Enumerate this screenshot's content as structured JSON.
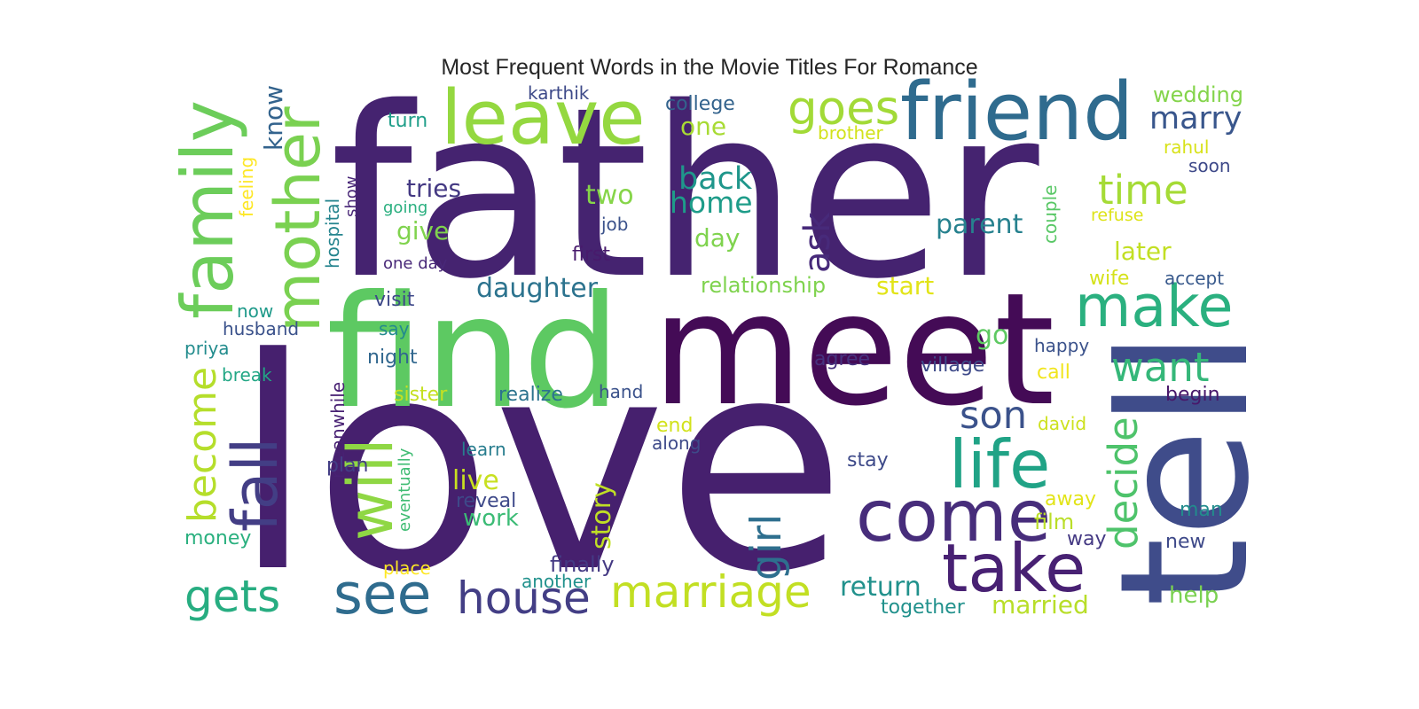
{
  "title": "Most Frequent Words in the Movie Titles For Romance",
  "palette": "viridis",
  "words": [
    {
      "text": "love",
      "color": "#46206e"
    },
    {
      "text": "father",
      "color": "#452370"
    },
    {
      "text": "meet",
      "color": "#440b56"
    },
    {
      "text": "tell",
      "color": "#3f4c8a"
    },
    {
      "text": "find",
      "color": "#5dc962"
    },
    {
      "text": "friend",
      "color": "#2f6b8e"
    },
    {
      "text": "leave",
      "color": "#94d840"
    },
    {
      "text": "family",
      "color": "#6ccd5a"
    },
    {
      "text": "mother",
      "color": "#7ad151"
    },
    {
      "text": "fall",
      "color": "#433e85"
    },
    {
      "text": "will",
      "color": "#8fd744"
    },
    {
      "text": "come",
      "color": "#472d7b"
    },
    {
      "text": "take",
      "color": "#482173"
    },
    {
      "text": "life",
      "color": "#20a386"
    },
    {
      "text": "make",
      "color": "#2ab07f"
    },
    {
      "text": "see",
      "color": "#2f6c8e"
    },
    {
      "text": "house",
      "color": "#433e85"
    },
    {
      "text": "marriage",
      "color": "#c2df23"
    },
    {
      "text": "gets",
      "color": "#27ad81"
    },
    {
      "text": "goes",
      "color": "#a2da37"
    },
    {
      "text": "become",
      "color": "#b5de2b"
    },
    {
      "text": "girl",
      "color": "#2e6f8e"
    },
    {
      "text": "decide",
      "color": "#4ec36b"
    },
    {
      "text": "time",
      "color": "#a5db36"
    },
    {
      "text": "want",
      "color": "#35b779"
    },
    {
      "text": "son",
      "color": "#3b528b"
    },
    {
      "text": "marry",
      "color": "#39568c"
    },
    {
      "text": "ask",
      "color": "#472a7a"
    },
    {
      "text": "back",
      "color": "#1f968b"
    },
    {
      "text": "home",
      "color": "#1e9c89"
    },
    {
      "text": "return",
      "color": "#21918c"
    },
    {
      "text": "married",
      "color": "#b8de29"
    },
    {
      "text": "tries",
      "color": "#443983"
    },
    {
      "text": "daughter",
      "color": "#2c738e"
    },
    {
      "text": "parent",
      "color": "#26818e"
    },
    {
      "text": "two",
      "color": "#86d549"
    },
    {
      "text": "live",
      "color": "#c8e020"
    },
    {
      "text": "story",
      "color": "#c0df25"
    },
    {
      "text": "one",
      "color": "#a8db34"
    },
    {
      "text": "day",
      "color": "#7fd34e"
    },
    {
      "text": "give",
      "color": "#80d34e"
    },
    {
      "text": "start",
      "color": "#e2e418"
    },
    {
      "text": "go",
      "color": "#5ec962"
    },
    {
      "text": "later",
      "color": "#c2df23"
    },
    {
      "text": "know",
      "color": "#33638d"
    },
    {
      "text": "relationship",
      "color": "#7fd34e"
    },
    {
      "text": "work",
      "color": "#3bbb75"
    },
    {
      "text": "help",
      "color": "#7ad151"
    },
    {
      "text": "wedding",
      "color": "#84d44b"
    },
    {
      "text": "finally",
      "color": "#443983"
    },
    {
      "text": "together",
      "color": "#21918c"
    },
    {
      "text": "college",
      "color": "#33638d"
    },
    {
      "text": "turn",
      "color": "#1f9e89"
    },
    {
      "text": "karthik",
      "color": "#3e4a89"
    },
    {
      "text": "brother",
      "color": "#d2e21b"
    },
    {
      "text": "rahul",
      "color": "#d8e219"
    },
    {
      "text": "soon",
      "color": "#3e4989"
    },
    {
      "text": "feeling",
      "color": "#fde725"
    },
    {
      "text": "show",
      "color": "#482677"
    },
    {
      "text": "going",
      "color": "#29af7f"
    },
    {
      "text": "job",
      "color": "#3b528b"
    },
    {
      "text": "first",
      "color": "#481a6c"
    },
    {
      "text": "one day",
      "color": "#482878"
    },
    {
      "text": "hospital",
      "color": "#25848e"
    },
    {
      "text": "couple",
      "color": "#58c765"
    },
    {
      "text": "refuse",
      "color": "#dde318"
    },
    {
      "text": "wife",
      "color": "#d5e21a"
    },
    {
      "text": "accept",
      "color": "#38598c"
    },
    {
      "text": "visit",
      "color": "#3e4989"
    },
    {
      "text": "say",
      "color": "#238a8d"
    },
    {
      "text": "now",
      "color": "#1f9a8a"
    },
    {
      "text": "husband",
      "color": "#3b528b"
    },
    {
      "text": "priya",
      "color": "#228c8d"
    },
    {
      "text": "night",
      "color": "#31678e"
    },
    {
      "text": "agree",
      "color": "#46327e"
    },
    {
      "text": "village",
      "color": "#3e4a89"
    },
    {
      "text": "happy",
      "color": "#3b528b"
    },
    {
      "text": "call",
      "color": "#f1e51d"
    },
    {
      "text": "begin",
      "color": "#48186a"
    },
    {
      "text": "break",
      "color": "#22a785"
    },
    {
      "text": "meanwhile",
      "color": "#482173"
    },
    {
      "text": "sister",
      "color": "#c5e021"
    },
    {
      "text": "realize",
      "color": "#2c738e"
    },
    {
      "text": "hand",
      "color": "#3b528b"
    },
    {
      "text": "end",
      "color": "#d2e21b"
    },
    {
      "text": "along",
      "color": "#3e4a89"
    },
    {
      "text": "david",
      "color": "#cde11d"
    },
    {
      "text": "learn",
      "color": "#287d8e"
    },
    {
      "text": "stay",
      "color": "#3e4a89"
    },
    {
      "text": "plan",
      "color": "#433e85"
    },
    {
      "text": "eventually",
      "color": "#3fbc73"
    },
    {
      "text": "reveal",
      "color": "#3e4989"
    },
    {
      "text": "away",
      "color": "#e2e418"
    },
    {
      "text": "film",
      "color": "#bade28"
    },
    {
      "text": "man",
      "color": "#228c8d"
    },
    {
      "text": "way",
      "color": "#443983"
    },
    {
      "text": "new",
      "color": "#3e4989"
    },
    {
      "text": "money",
      "color": "#2ab07f"
    },
    {
      "text": "place",
      "color": "#fde725"
    },
    {
      "text": "another",
      "color": "#21918c"
    }
  ]
}
